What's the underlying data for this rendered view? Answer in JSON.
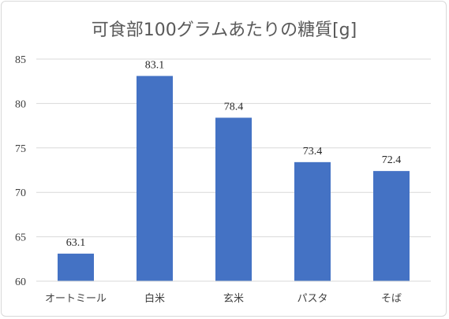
{
  "chart_data": {
    "type": "bar",
    "title": "可食部100グラムあたりの糖質[g]",
    "xlabel": "",
    "ylabel": "",
    "categories": [
      "オートミール",
      "白米",
      "玄米",
      "パスタ",
      "そば"
    ],
    "values": [
      63.1,
      83.1,
      78.4,
      73.4,
      72.4
    ],
    "data_labels": [
      "63.1",
      "83.1",
      "78.4",
      "73.4",
      "72.4"
    ],
    "ylim": [
      60,
      85
    ],
    "yticks": [
      60,
      65,
      70,
      75,
      80,
      85
    ],
    "ytick_labels": [
      "60",
      "65",
      "70",
      "75",
      "80",
      "85"
    ],
    "grid": true,
    "legend": "none",
    "bar_color": "#4472c4"
  }
}
